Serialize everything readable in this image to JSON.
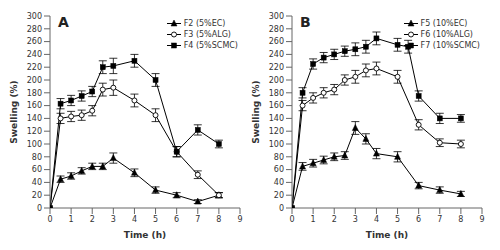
{
  "chart_data": [
    {
      "type": "line",
      "title": "A",
      "xlabel": "Time (h)",
      "ylabel": "Swelling (%)",
      "xlim": [
        0,
        9
      ],
      "ylim": [
        0,
        300
      ],
      "xticks": [
        0,
        1,
        2,
        3,
        4,
        5,
        6,
        7,
        8,
        9
      ],
      "yticks": [
        0,
        20,
        40,
        60,
        80,
        100,
        120,
        140,
        160,
        180,
        200,
        220,
        240,
        260,
        280,
        300
      ],
      "legend": "upper right",
      "series": [
        {
          "name": "F2 (5%EC)",
          "color": "black",
          "marker": "triangle",
          "x": [
            0,
            0.5,
            1,
            1.5,
            2,
            2.5,
            3,
            4,
            5,
            6,
            7,
            8
          ],
          "values": [
            0,
            45,
            50,
            58,
            65,
            65,
            78,
            55,
            28,
            20,
            10,
            20
          ],
          "yerr": [
            0,
            5,
            5,
            5,
            5,
            5,
            8,
            6,
            5,
            4,
            3,
            4
          ]
        },
        {
          "name": "F3 (5%ALG)",
          "color": "black",
          "marker": "circle",
          "x": [
            0,
            0.5,
            1,
            1.5,
            2,
            2.5,
            3,
            4,
            5,
            6,
            7,
            8
          ],
          "values": [
            0,
            140,
            143,
            145,
            152,
            185,
            188,
            168,
            145,
            88,
            52,
            20
          ],
          "yerr": [
            0,
            8,
            8,
            8,
            8,
            10,
            12,
            10,
            10,
            8,
            6,
            4
          ]
        },
        {
          "name": "F4 (5%SCMC)",
          "color": "black",
          "marker": "square",
          "x": [
            0,
            0.5,
            1,
            1.5,
            2,
            2.5,
            3,
            4,
            5,
            6,
            7,
            8
          ],
          "values": [
            0,
            163,
            168,
            175,
            182,
            220,
            222,
            230,
            200,
            88,
            122,
            100
          ],
          "yerr": [
            0,
            8,
            8,
            8,
            8,
            10,
            12,
            10,
            10,
            8,
            8,
            6
          ]
        }
      ]
    },
    {
      "type": "line",
      "title": "B",
      "xlabel": "Time (h)",
      "ylabel": "Swelling (%)",
      "xlim": [
        0,
        9
      ],
      "ylim": [
        0,
        300
      ],
      "xticks": [
        0,
        1,
        2,
        3,
        4,
        5,
        6,
        7,
        8,
        9
      ],
      "yticks": [
        0,
        20,
        40,
        60,
        80,
        100,
        120,
        140,
        160,
        180,
        200,
        220,
        240,
        260,
        280,
        300
      ],
      "legend": "upper right",
      "series": [
        {
          "name": "F5 (10%EC)",
          "color": "black",
          "marker": "triangle",
          "x": [
            0,
            0.5,
            1,
            1.5,
            2,
            2.5,
            3,
            3.5,
            4,
            5,
            6,
            7,
            8
          ],
          "values": [
            0,
            65,
            70,
            75,
            80,
            82,
            125,
            108,
            85,
            80,
            35,
            28,
            22
          ],
          "yerr": [
            0,
            6,
            6,
            6,
            6,
            6,
            10,
            8,
            8,
            8,
            5,
            5,
            4
          ]
        },
        {
          "name": "F6 (10%ALG)",
          "color": "black",
          "marker": "circle",
          "x": [
            0,
            0.5,
            1,
            1.5,
            2,
            2.5,
            3,
            3.5,
            4,
            5,
            6,
            7,
            8
          ],
          "values": [
            0,
            160,
            172,
            180,
            185,
            200,
            205,
            215,
            218,
            205,
            130,
            102,
            100
          ],
          "yerr": [
            0,
            8,
            8,
            8,
            8,
            8,
            10,
            10,
            10,
            10,
            8,
            6,
            6
          ]
        },
        {
          "name": "F7 (10%SCMC)",
          "color": "black",
          "marker": "square",
          "x": [
            0,
            0.5,
            1,
            1.5,
            2,
            2.5,
            3,
            3.5,
            4,
            5,
            5.5,
            6,
            7,
            8
          ],
          "values": [
            0,
            180,
            225,
            235,
            240,
            245,
            248,
            252,
            265,
            255,
            252,
            175,
            140,
            140
          ],
          "yerr": [
            0,
            8,
            8,
            8,
            8,
            8,
            10,
            10,
            10,
            10,
            10,
            8,
            8,
            6
          ]
        }
      ]
    }
  ]
}
